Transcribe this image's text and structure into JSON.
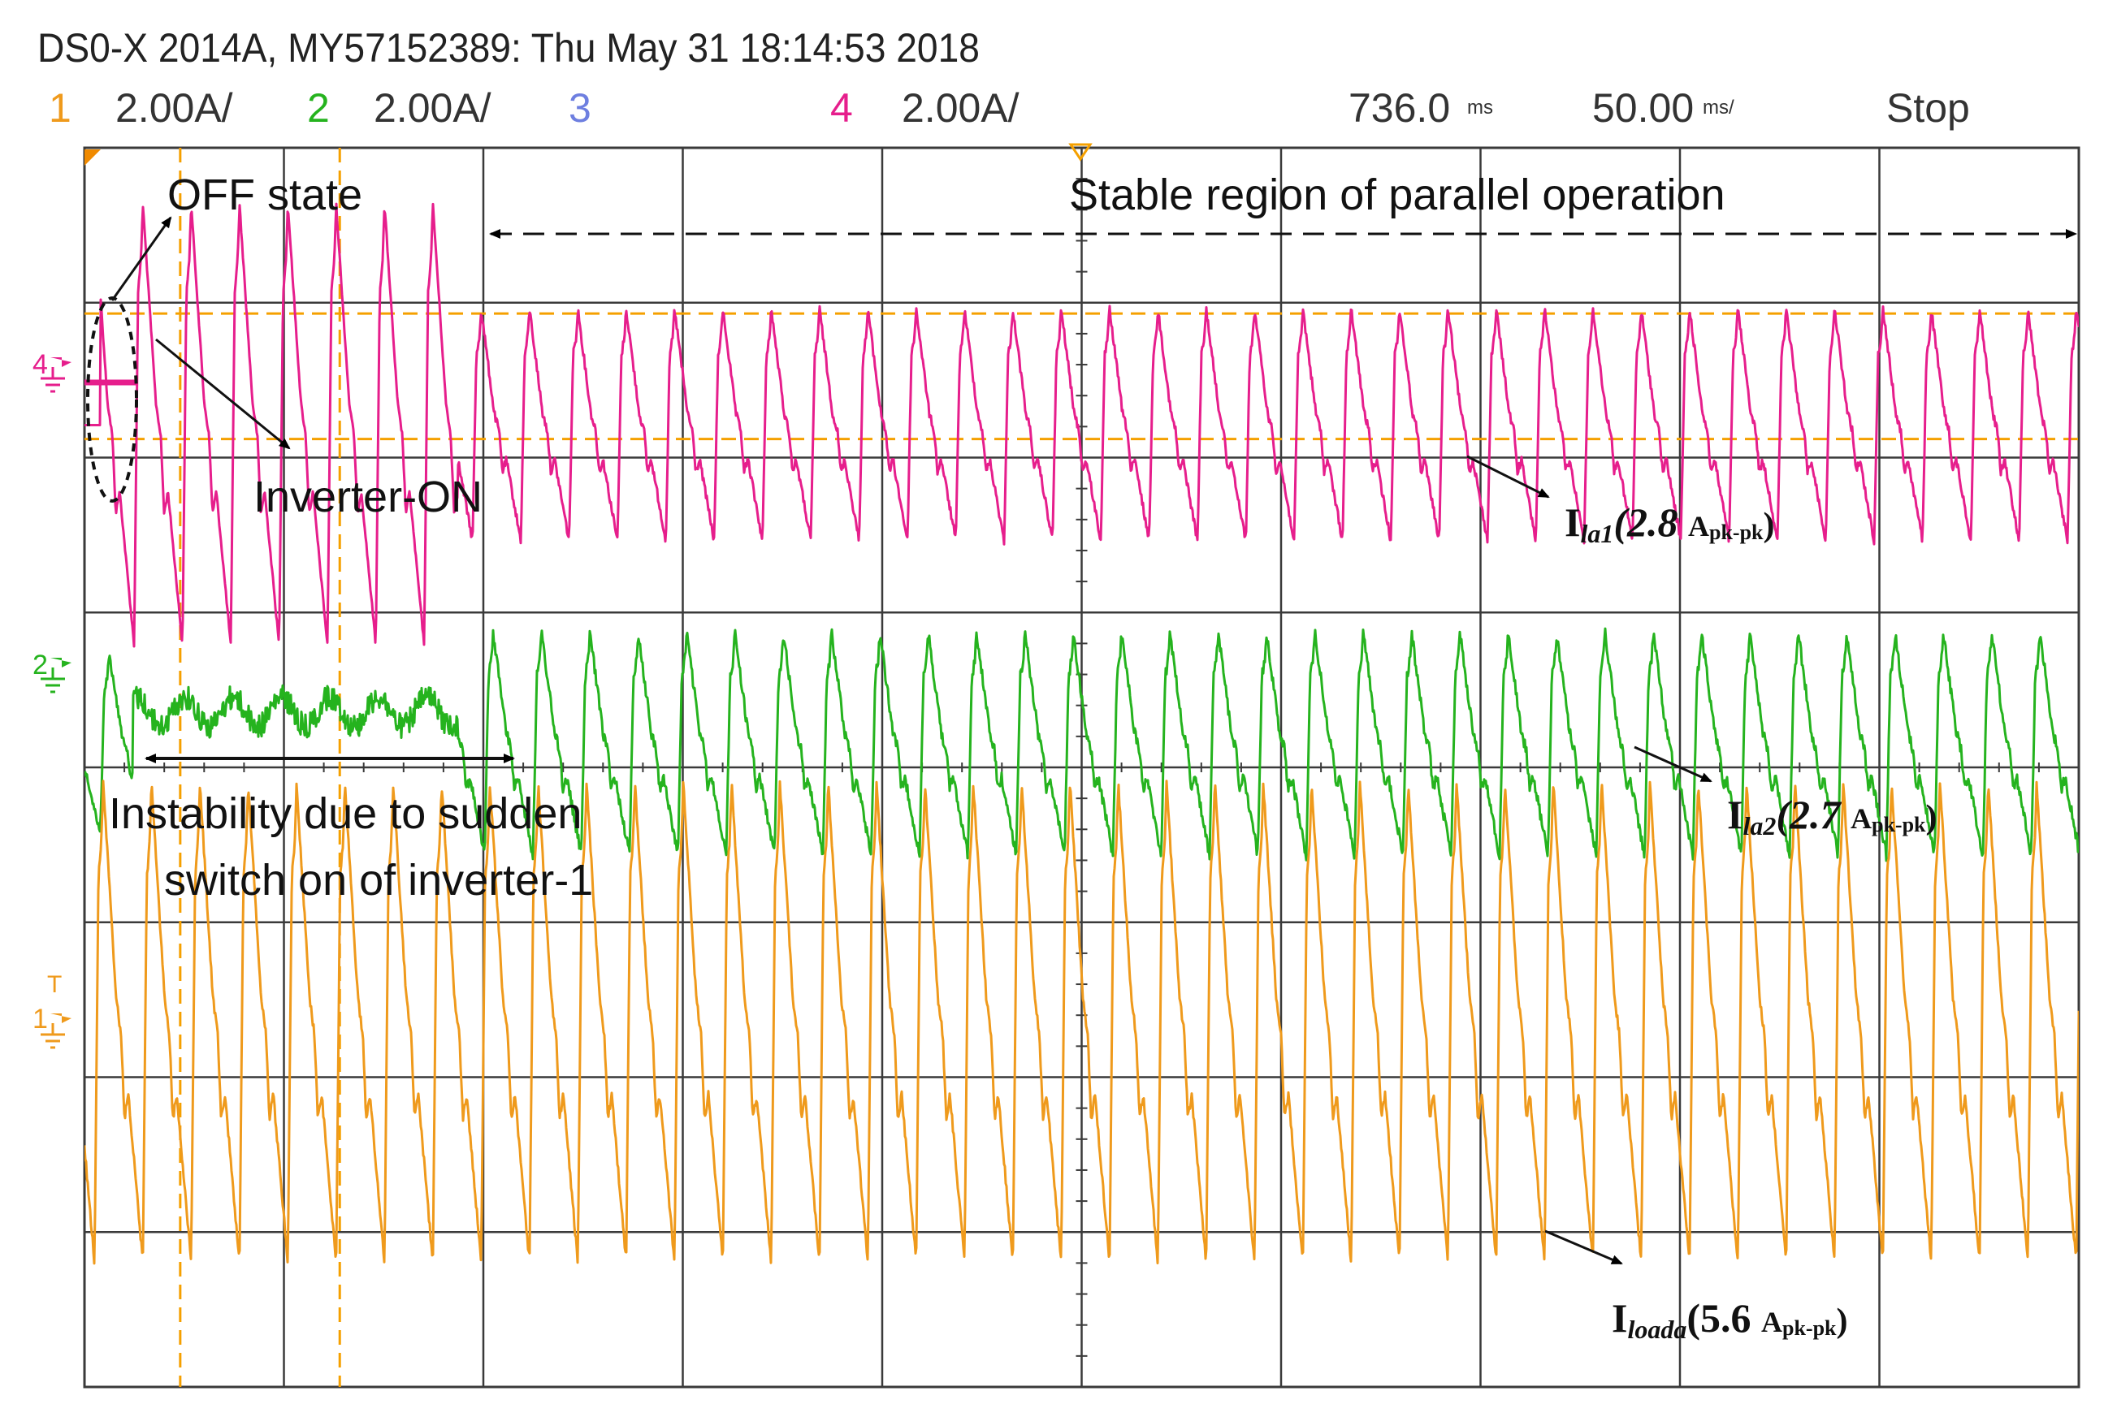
{
  "header": {
    "title": "DS0-X 2014A, MY57152389: Thu May 31 18:14:53 2018",
    "ch1_num": "1",
    "ch1_scale": "2.00A/",
    "ch2_num": "2",
    "ch2_scale": "2.00A/",
    "ch3_num": "3",
    "ch4_num": "4",
    "ch4_scale": "2.00A/",
    "time_pos": "736.0",
    "time_pos_unit": "ms",
    "time_div": "50.00",
    "time_div_unit": "ms/",
    "run_state": "Stop"
  },
  "colors": {
    "ch1": "#EF9A1C",
    "ch2": "#25B31E",
    "ch3": "#6E7FE0",
    "ch4": "#E61E8C",
    "grid": "#3a3a3a",
    "cursor": "#F5A000"
  },
  "markers": {
    "ch4": "4",
    "ch2": "2",
    "ch1": "1",
    "trigger": "T"
  },
  "annotations": {
    "off_state": "OFF state",
    "inverter_on": "Inverter-ON",
    "stable_region": "Stable region of parallel operation",
    "instability_line1": "Instability due to sudden",
    "instability_line2": "switch on of inverter-1",
    "ila1_main": "I",
    "ila1_sub": "la1",
    "ila1_val": "(2.8 ",
    "ila1_unit": "A",
    "ila1_unit_sub": "pk-pk",
    "ila1_close": ")",
    "ila2_main": "I",
    "ila2_sub": "la2",
    "ila2_val": "(2.7 ",
    "ila2_unit": "A",
    "ila2_unit_sub": "pk-pk",
    "ila2_close": ")",
    "iload_main": "I",
    "iload_sub": "loada",
    "iload_val": "(5.6 ",
    "iload_unit": "A",
    "iload_unit_sub": "pk-pk",
    "iload_close": ")"
  },
  "chart_data": {
    "type": "line",
    "grid": true,
    "x_divisions": 10,
    "y_divisions": 8,
    "time_per_div_ms": 50.0,
    "time_position_ms": 736.0,
    "series": [
      {
        "name": "Ila1",
        "channel": 4,
        "scale_A_per_div": 2.0,
        "peak_to_peak_A": 2.8,
        "inverter_on_div": 0.35
      },
      {
        "name": "Ila2",
        "channel": 2,
        "scale_A_per_div": 2.0,
        "peak_to_peak_A": 2.7,
        "stable_from_div": 2.2
      },
      {
        "name": "Iloada",
        "channel": 1,
        "scale_A_per_div": 2.0,
        "peak_to_peak_A": 5.6
      }
    ]
  }
}
